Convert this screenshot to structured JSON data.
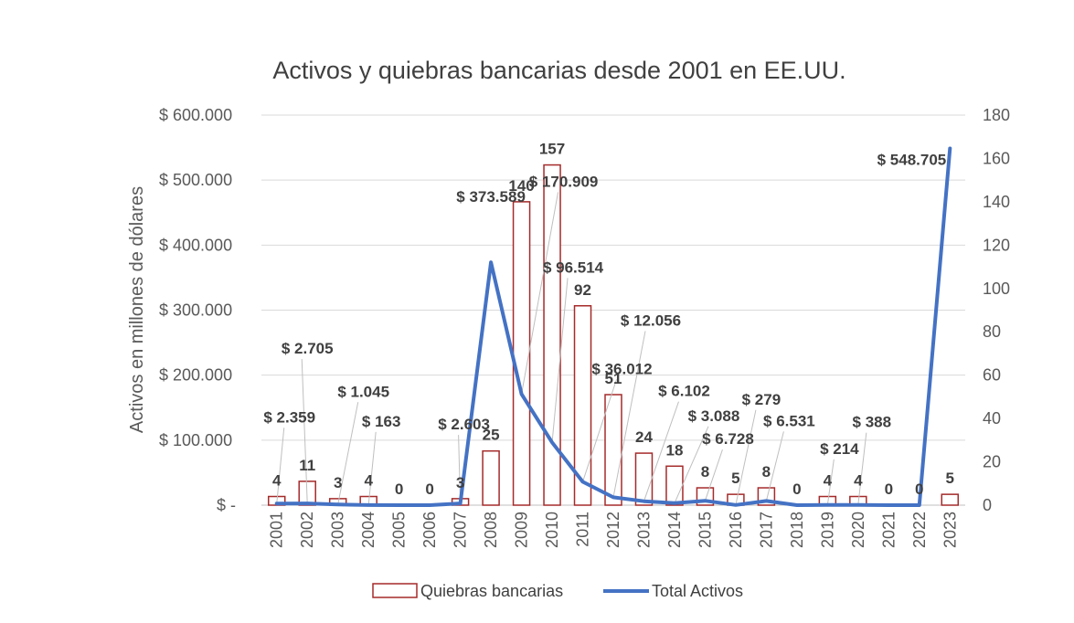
{
  "chart_data": {
    "type": "bar+line",
    "title": "Activos y quiebras bancarias desde 2001 en EE.UU.",
    "ylabel": "Activos en millones de dólares",
    "categories": [
      "2001",
      "2002",
      "2003",
      "2004",
      "2005",
      "2006",
      "2007",
      "2008",
      "2009",
      "2010",
      "2011",
      "2012",
      "2013",
      "2014",
      "2015",
      "2016",
      "2017",
      "2018",
      "2019",
      "2020",
      "2021",
      "2022",
      "2023"
    ],
    "series": [
      {
        "name": "Quiebras bancarias",
        "type": "bar",
        "axis": "right",
        "color": "#A52A2A",
        "values": [
          4,
          11,
          3,
          4,
          0,
          0,
          3,
          25,
          140,
          157,
          92,
          51,
          24,
          18,
          8,
          5,
          8,
          0,
          4,
          4,
          0,
          0,
          5
        ]
      },
      {
        "name": "Total Activos",
        "type": "line",
        "axis": "left",
        "color": "#4472C4",
        "values": [
          2359,
          2705,
          1045,
          163,
          0,
          0,
          2603,
          373589,
          170909,
          96514,
          36012,
          12056,
          6102,
          3088,
          6728,
          279,
          6531,
          0,
          214,
          388,
          0,
          0,
          548705
        ]
      }
    ],
    "bar_labels": [
      "4",
      "11",
      "3",
      "4",
      "0",
      "0",
      "3",
      "25",
      "140",
      "157",
      "92",
      "51",
      "24",
      "18",
      "8",
      "5",
      "8",
      "0",
      "4",
      "4",
      "0",
      "0",
      "5"
    ],
    "line_labels": [
      "$ 2.359",
      "$ 2.705",
      "$ 1.045",
      "$ 163",
      null,
      null,
      "$ 2.603",
      "$ 373.589",
      "$ 170.909",
      "$ 96.514",
      "$ 36.012",
      "$ 12.056",
      "$ 6.102",
      "$ 3.088",
      "$ 6.728",
      "$ 279",
      "$ 6.531",
      null,
      "$ 214",
      "$ 388",
      null,
      null,
      "$ 548.705"
    ],
    "y_left": {
      "min": 0,
      "max": 600000,
      "ticks": [
        0,
        100000,
        200000,
        300000,
        400000,
        500000,
        600000
      ],
      "tick_labels": [
        "$ -",
        "$ 100.000",
        "$ 200.000",
        "$ 300.000",
        "$ 400.000",
        "$ 500.000",
        "$ 600.000"
      ]
    },
    "y_right": {
      "min": 0,
      "max": 180,
      "ticks": [
        0,
        20,
        40,
        60,
        80,
        100,
        120,
        140,
        160,
        180
      ],
      "tick_labels": [
        "0",
        "20",
        "40",
        "60",
        "80",
        "100",
        "120",
        "140",
        "160",
        "180"
      ]
    },
    "legend": {
      "position": "bottom",
      "items": [
        {
          "label": "Quiebras bancarias",
          "kind": "bar"
        },
        {
          "label": "Total Activos",
          "kind": "line"
        }
      ]
    },
    "grid": true
  }
}
